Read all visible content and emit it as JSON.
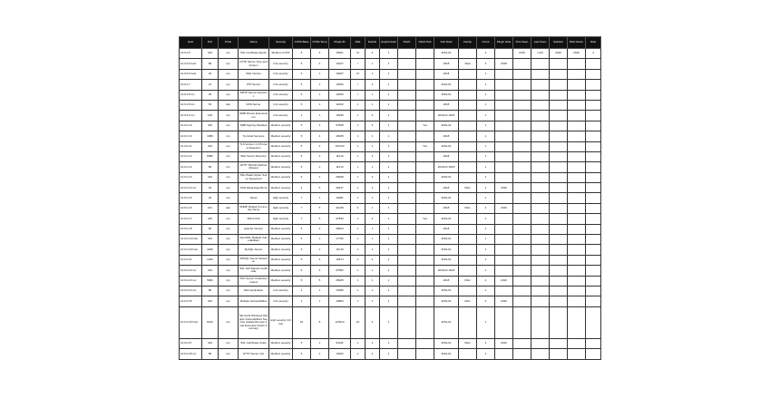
{
  "table": {
    "headers": [
      "Host",
      "Port",
      "Proto",
      "Name",
      "Severity",
      "CVSS Base",
      "CVSS Temp",
      "Plugin ID",
      "Risk",
      "Exploit",
      "Exploit Avail",
      "Patch",
      "Patch Pub",
      "Vuln Date",
      "Family",
      "Count",
      "Plugin Date",
      "First Seen",
      "Last Seen",
      "Solution",
      "Risk Factor",
      "Note"
    ],
    "col_widths": [
      25,
      18,
      22,
      34,
      26,
      20,
      20,
      24,
      16,
      16,
      20,
      20,
      20,
      27,
      20,
      20,
      20,
      20,
      20,
      20,
      20,
      17
    ],
    "rows": [
      {
        "style": "",
        "cells": [
          "10.0.0.5",
          "443",
          "tcp",
          "SSL Certificate Expiry",
          "Medium CVSS",
          "5",
          "4",
          "15901",
          "M",
          "3",
          "1",
          "",
          "",
          "2019-01",
          "",
          "2",
          "",
          "2019",
          "1.0%",
          "2019",
          "2019",
          "4"
        ]
      },
      {
        "style": "",
        "cells": [
          "10.0.0.6 host",
          "80",
          "tcp",
          "HTTP Server Type and Version",
          "Info severity",
          "5",
          "4",
          "10107",
          "I",
          "1",
          "1",
          "",
          "",
          "2018",
          "Web",
          "3",
          "2018",
          "",
          "",
          "",
          "",
          ""
        ]
      },
      {
        "style": "",
        "cells": [
          "10.0.0.6 host",
          "22",
          "tcp",
          "SSH Version",
          "Info severity",
          "5",
          "1",
          "10267",
          "M",
          "1",
          "1",
          "",
          "",
          "2018",
          "",
          "1",
          "",
          "",
          "",
          "",
          "",
          ""
        ]
      },
      {
        "style": "",
        "cells": [
          "10.0.0.7",
          "21",
          "tcp",
          "FTP Server",
          "Info severity",
          "5",
          "1",
          "10092",
          "I",
          "2",
          "1",
          "",
          "",
          "2019-01",
          "",
          "1",
          "",
          "",
          "",
          "",
          "",
          ""
        ]
      },
      {
        "style": "",
        "cells": [
          "10.0.0.8 srv",
          "25",
          "tcp",
          "SMTP Server Detection",
          "Info severity",
          "5",
          "1",
          "10263",
          "I",
          "1",
          "1",
          "",
          "",
          "2019-01",
          "",
          "1",
          "",
          "",
          "",
          "",
          "",
          ""
        ]
      },
      {
        "style": "",
        "cells": [
          "10.0.0.8 srv",
          "53",
          "udp",
          "DNS Server",
          "Info severity",
          "5",
          "1",
          "11002",
          "1",
          "1",
          "1",
          "",
          "",
          "2018",
          "",
          "1",
          "",
          "",
          "",
          "",
          "",
          ""
        ]
      },
      {
        "style": "",
        "cells": [
          "10.0.0.9 srv",
          "139",
          "tcp",
          "SMB Shares Enumeration",
          "Info severity",
          "1",
          "1",
          "10395",
          "1",
          "2",
          "1",
          "",
          "",
          "2019-01 2018",
          "",
          "1",
          "",
          "",
          "",
          "",
          "",
          ""
        ]
      },
      {
        "style": "thick",
        "cells": [
          "10.0.0.10",
          "445",
          "tcp",
          "SMB Signing Disabled",
          "Medium severity",
          "5",
          "4",
          "57608",
          "1",
          "3",
          "1",
          "",
          "Yes",
          "2019-01",
          "",
          "1",
          "",
          "",
          "",
          "",
          "",
          ""
        ]
      },
      {
        "style": "",
        "cells": [
          "10.0.0.10",
          "3389",
          "tcp",
          "Terminal Services",
          "Medium severity",
          "5",
          "4",
          "18405",
          "1",
          "1",
          "1",
          "",
          "",
          "2018",
          "",
          "1",
          "",
          "",
          "",
          "",
          "",
          ""
        ]
      },
      {
        "style": "",
        "cells": [
          "10.0.0.11",
          "443",
          "tcp",
          "TLS Version 1.0 Protocol Detection",
          "Medium severity",
          "5",
          "4",
          "104743",
          "1",
          "1",
          "1",
          "",
          "Yes",
          "2019-01",
          "",
          "1",
          "",
          "",
          "",
          "",
          "",
          ""
        ]
      },
      {
        "style": "thick",
        "cells": [
          "10.0.0.12",
          "8080",
          "tcp",
          "Web Server Directory",
          "Medium severity",
          "5",
          "4",
          "11219",
          "1",
          "2",
          "1",
          "",
          "",
          "2018",
          "",
          "1",
          "",
          "",
          "",
          "",
          "",
          ""
        ]
      },
      {
        "style": "",
        "cells": [
          "10.0.0.12",
          "80",
          "tcp",
          "HTTP TRACE Method Allowed",
          "Medium severity",
          "5",
          "4",
          "11213",
          "1",
          "1",
          "1",
          "",
          "",
          "2019-01 2018",
          "",
          "1",
          "",
          "",
          "",
          "",
          "",
          ""
        ]
      },
      {
        "style": "",
        "cells": [
          "10.0.0.13",
          "443",
          "tcp",
          "SSL Weak Cipher Suites Supported",
          "Medium severity",
          "5",
          "4",
          "26928",
          "1",
          "3",
          "1",
          "",
          "",
          "2019-01",
          "",
          "1",
          "",
          "",
          "",
          "",
          "",
          ""
        ]
      },
      {
        "style": "",
        "cells": [
          "10.0.0.14 srv",
          "22",
          "tcp",
          "SSH Weak Algorithms",
          "Medium severity",
          "4",
          "5",
          "90317",
          "1",
          "2",
          "1",
          "",
          "",
          "2018",
          "Misc",
          "4",
          "2019",
          "",
          "",
          "",
          "",
          ""
        ]
      },
      {
        "style": "",
        "cells": [
          "10.0.0.15",
          "23",
          "tcp",
          "Telnet",
          "High severity",
          "7",
          "1",
          "10281",
          "1",
          "1",
          "1",
          "",
          "",
          "2019-01",
          "",
          "1",
          "",
          "",
          "",
          "",
          "",
          ""
        ]
      },
      {
        "style": "",
        "cells": [
          "10.0.0.16",
          "161",
          "udp",
          "SNMP Default Community Name",
          "High severity",
          "7",
          "5",
          "41028",
          "3",
          "1",
          "1",
          "",
          "",
          "2018",
          "Misc",
          "4",
          "2019",
          "",
          "",
          "",
          "",
          ""
        ]
      },
      {
        "style": "",
        "cells": [
          "10.0.0.17",
          "445",
          "tcp",
          "MS17-010",
          "High severity",
          "7",
          "5",
          "97833",
          "1",
          "3",
          "1",
          "",
          "Yes",
          "2019-01",
          "",
          "1",
          "",
          "",
          "",
          "",
          "",
          ""
        ]
      },
      {
        "style": "",
        "cells": [
          "10.0.0.18",
          "80",
          "tcp",
          "Apache Version",
          "Medium severity",
          "5",
          "4",
          "48204",
          "1",
          "1",
          "1",
          "",
          "",
          "2018",
          "",
          "1",
          "",
          "",
          "",
          "",
          "",
          ""
        ]
      },
      {
        "style": "thick",
        "cells": [
          "10.0.0.19 host",
          "443",
          "tcp",
          "OpenSSL Multiple Vulnerabilities",
          "Medium severity",
          "5",
          "1",
          "17765",
          "1",
          "1",
          "1",
          "",
          "",
          "2019-01",
          "",
          "1",
          "",
          "",
          "",
          "",
          "",
          ""
        ]
      },
      {
        "style": "",
        "cells": [
          "10.0.0.20 host",
          "3306",
          "tcp",
          "MySQL Server",
          "Medium severity",
          "5",
          "1",
          "10719",
          "1",
          "1",
          "1",
          "",
          "",
          "2019-01",
          "",
          "1",
          "",
          "",
          "",
          "",
          "",
          ""
        ]
      },
      {
        "style": "",
        "cells": [
          "10.0.0.21",
          "1433",
          "tcp",
          "MSSQL Server Detection",
          "Medium severity",
          "5",
          "4",
          "10674",
          "1",
          "2",
          "1",
          "",
          "",
          "2019-01",
          "",
          "1",
          "",
          "",
          "",
          "",
          "",
          ""
        ]
      },
      {
        "style": "",
        "cells": [
          "10.0.0.22 srv",
          "443",
          "tcp",
          "SSL Self-Signed Certificate",
          "Medium severity",
          "5",
          "4",
          "57582",
          "1",
          "1",
          "1",
          "",
          "",
          "2019-01 2018",
          "",
          "1",
          "",
          "",
          "",
          "",
          "",
          ""
        ]
      },
      {
        "style": "",
        "cells": [
          "10.0.0.23 srv",
          "5900",
          "tcp",
          "VNC Server Unauthenticated",
          "Medium severity",
          "5",
          "5",
          "26925",
          "1",
          "1",
          "1",
          "",
          "",
          "2018",
          "Misc",
          "4",
          "2019",
          "",
          "",
          "",
          "",
          ""
        ]
      },
      {
        "style": "",
        "cells": [
          "10.0.0.24 srv",
          "80",
          "tcp",
          "Web Application",
          "Info severity",
          "1",
          "1",
          "10386",
          "1",
          "1",
          "1",
          "",
          "",
          "2019-01",
          "",
          "1",
          "",
          "",
          "",
          "",
          "",
          ""
        ]
      },
      {
        "style": "thick",
        "cells": [
          "10.0.0.25",
          "443",
          "tcp",
          "Multiple Vulnerabilities",
          "Info severity",
          "1",
          "1",
          "10863",
          "1",
          "1",
          "1",
          "",
          "",
          "2019-01",
          "Misc",
          "4",
          "2019",
          "",
          "",
          "",
          "",
          ""
        ]
      },
      {
        "style": "tall",
        "cells": [
          "10.0.0.26 host",
          "8443",
          "tcp",
          "Microsoft Windows Multiple Vulnerabilities Security Update Remote Code Execution Patch Summary",
          "High severity Critical",
          "10",
          "8",
          "125313",
          "10",
          "3",
          "1",
          "",
          "",
          "2019-01",
          "",
          "1",
          "",
          "",
          "",
          "",
          "",
          ""
        ]
      },
      {
        "style": "",
        "cells": [
          "10.0.0.27",
          "443",
          "tcp",
          "SSL Certificate Chain",
          "Medium severity",
          "5",
          "1",
          "51192",
          "1",
          "3",
          "1",
          "",
          "",
          "2019-01",
          "Misc",
          "4",
          "2019",
          "",
          "",
          "",
          "",
          ""
        ]
      },
      {
        "style": "",
        "cells": [
          "10.0.0.28 srv",
          "80",
          "tcp",
          "HTTP Server Info",
          "Medium severity",
          "5",
          "1",
          "10302",
          "1",
          "3",
          "1",
          "",
          "",
          "2019-01",
          "",
          "1",
          "",
          "",
          "",
          "",
          "",
          ""
        ]
      }
    ]
  }
}
